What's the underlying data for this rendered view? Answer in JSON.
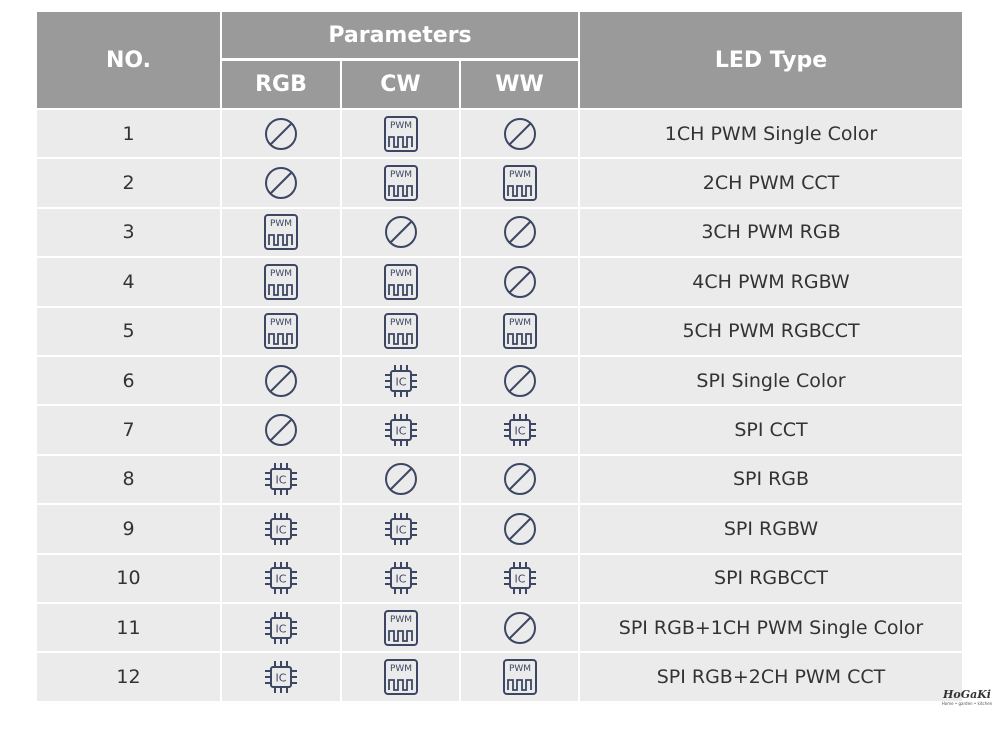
{
  "table": {
    "header": {
      "no": "NO.",
      "parameters": "Parameters",
      "columns": [
        "RGB",
        "CW",
        "WW"
      ],
      "led_type": "LED Type"
    },
    "rows": [
      {
        "no": "1",
        "params": [
          null,
          "PWM",
          null
        ],
        "led_type": "1CH PWM Single Color"
      },
      {
        "no": "2",
        "params": [
          null,
          "PWM",
          "PWM"
        ],
        "led_type": "2CH PWM CCT"
      },
      {
        "no": "3",
        "params": [
          "PWM",
          null,
          null
        ],
        "led_type": "3CH PWM RGB"
      },
      {
        "no": "4",
        "params": [
          "PWM",
          "PWM",
          null
        ],
        "led_type": "4CH PWM RGBW"
      },
      {
        "no": "5",
        "params": [
          "PWM",
          "PWM",
          "PWM"
        ],
        "led_type": "5CH PWM RGBCCT"
      },
      {
        "no": "6",
        "params": [
          null,
          "IC",
          null
        ],
        "led_type": "SPI Single Color"
      },
      {
        "no": "7",
        "params": [
          null,
          "IC",
          "IC"
        ],
        "led_type": "SPI CCT"
      },
      {
        "no": "8",
        "params": [
          "IC",
          null,
          null
        ],
        "led_type": "SPI RGB"
      },
      {
        "no": "9",
        "params": [
          "IC",
          "IC",
          null
        ],
        "led_type": "SPI RGBW"
      },
      {
        "no": "10",
        "params": [
          "IC",
          "IC",
          "IC"
        ],
        "led_type": "SPI RGBCCT"
      },
      {
        "no": "11",
        "params": [
          "IC",
          "PWM",
          null
        ],
        "led_type": "SPI RGB+1CH PWM Single Color"
      },
      {
        "no": "12",
        "params": [
          "IC",
          "PWM",
          "PWM"
        ],
        "led_type": "SPI RGB+2CH PWM CCT"
      }
    ]
  },
  "watermark": {
    "name": "HoGaKi",
    "tagline": "Home • garden • kitchen"
  }
}
